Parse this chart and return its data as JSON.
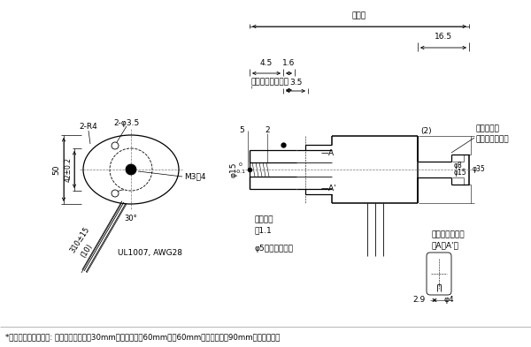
{
  "bg_color": "#ffffff",
  "line_color": "#000000",
  "footnote": "*ネジシャフトの長さ: 有効ストロークが30mmの場合は全長60mmに、60mmの場合は全長90mmになります。",
  "labels": {
    "zencho": "＊全長",
    "yuko": "＊有効ストローク",
    "rotor": "ロータ間座\n（手動操作部）",
    "slit_cross": "スリット部断面\n（A－A'）",
    "m3": "M3深4",
    "slit": "スリット\n庄1.1",
    "neji": "φ5ネジシャフト",
    "ul": "UL1007, AWG28",
    "r4": "2-R4",
    "phi35_hole": "2-φ3.5",
    "a_label": "—A",
    "a_prime": "—A'",
    "angle30": "30°",
    "wire_len": "310±15",
    "wire_sub": "(10)",
    "dim_50": "50",
    "dim_42": "42±0.2",
    "dim_16_5": "16.5",
    "dim_4_5": "4.5",
    "dim_1_6": "1.6",
    "dim_3_5": "3.5",
    "dim_5": "5",
    "dim_2": "2",
    "dim_2p": "(2)",
    "dim_phi15": "φ15",
    "dim_phi15_tol": "0\n-0.1",
    "dim_phi8": "φ8",
    "dim_phi15b": "φ15",
    "dim_phi35": "φ35",
    "dim_2_9": "2.9",
    "dim_phi4": "φ4"
  }
}
